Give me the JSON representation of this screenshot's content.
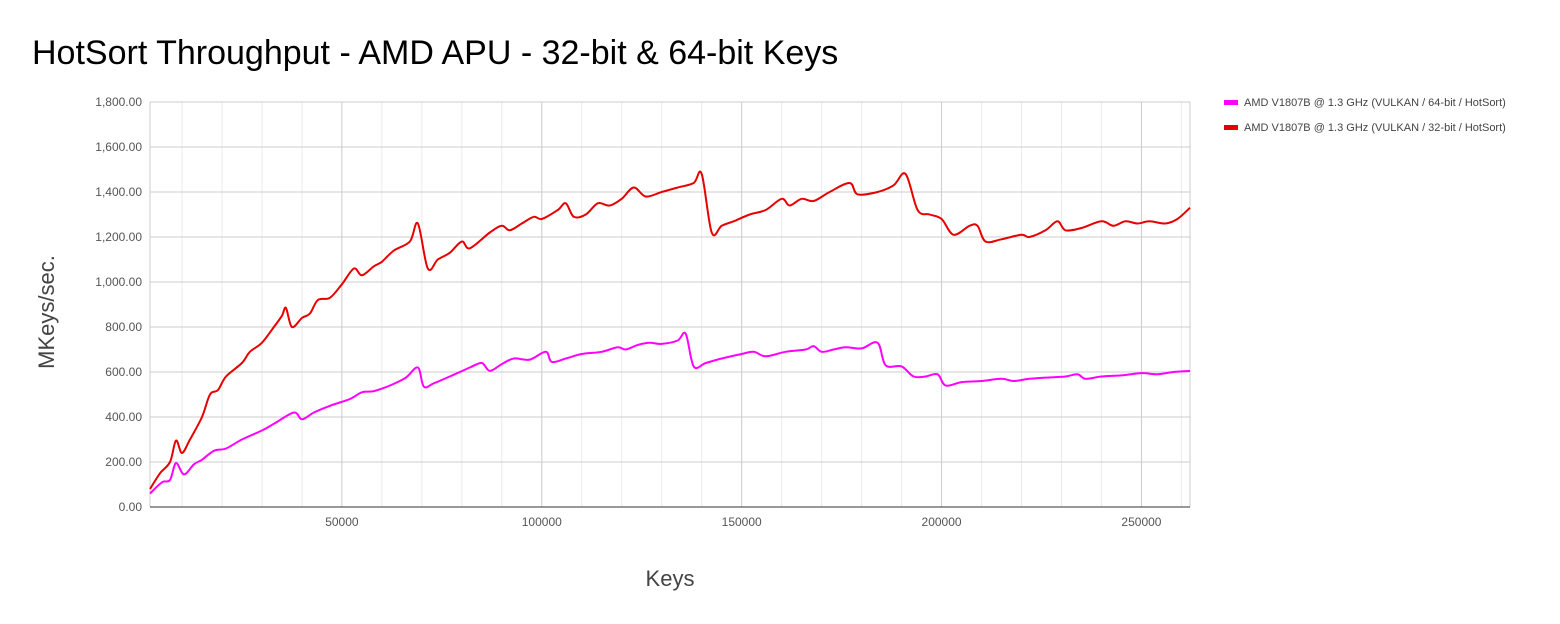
{
  "colors": {
    "series64": "#ff00ff",
    "series32": "#e60000",
    "grid_major": "#cccccc",
    "grid_minor": "#ebebeb",
    "axis": "#333333"
  },
  "chart_data": {
    "type": "line",
    "title": "HotSort Throughput - AMD APU - 32-bit & 64-bit Keys",
    "xlabel": "Keys",
    "ylabel": "MKeys/sec.",
    "xlim": [
      2000,
      262144
    ],
    "ylim": [
      0,
      1800
    ],
    "x_ticks": [
      50000,
      100000,
      150000,
      200000,
      250000
    ],
    "x_tick_labels": [
      "50000",
      "100000",
      "150000",
      "200000",
      "250000"
    ],
    "y_ticks": [
      0,
      200,
      400,
      600,
      800,
      1000,
      1200,
      1400,
      1600,
      1800
    ],
    "y_tick_labels": [
      "0.00",
      "200.00",
      "400.00",
      "600.00",
      "800.00",
      "1,000.00",
      "1,200.00",
      "1,400.00",
      "1,600.00",
      "1,800.00"
    ],
    "grid": true,
    "legend_position": "top-right",
    "series": [
      {
        "name": "AMD V1807B @ 1.3 GHz (VULKAN / 64-bit / HotSort)",
        "color": "#ff00ff",
        "points": [
          [
            2000,
            60
          ],
          [
            5000,
            110
          ],
          [
            7000,
            120
          ],
          [
            8500,
            195
          ],
          [
            10500,
            145
          ],
          [
            13000,
            190
          ],
          [
            15000,
            210
          ],
          [
            18000,
            250
          ],
          [
            21000,
            260
          ],
          [
            25000,
            300
          ],
          [
            30000,
            340
          ],
          [
            33000,
            370
          ],
          [
            38000,
            420
          ],
          [
            40000,
            390
          ],
          [
            43000,
            420
          ],
          [
            47000,
            450
          ],
          [
            52000,
            480
          ],
          [
            55000,
            510
          ],
          [
            58000,
            515
          ],
          [
            62000,
            540
          ],
          [
            66000,
            575
          ],
          [
            69000,
            620
          ],
          [
            70500,
            535
          ],
          [
            73000,
            550
          ],
          [
            77000,
            580
          ],
          [
            82000,
            620
          ],
          [
            85000,
            640
          ],
          [
            87000,
            605
          ],
          [
            90000,
            635
          ],
          [
            93000,
            660
          ],
          [
            97000,
            655
          ],
          [
            101000,
            690
          ],
          [
            102500,
            645
          ],
          [
            106000,
            660
          ],
          [
            110000,
            680
          ],
          [
            115000,
            690
          ],
          [
            119000,
            710
          ],
          [
            121000,
            700
          ],
          [
            124000,
            720
          ],
          [
            127000,
            730
          ],
          [
            130000,
            725
          ],
          [
            134000,
            740
          ],
          [
            136000,
            770
          ],
          [
            138000,
            625
          ],
          [
            141000,
            640
          ],
          [
            145000,
            660
          ],
          [
            150000,
            680
          ],
          [
            153000,
            690
          ],
          [
            156000,
            670
          ],
          [
            161000,
            690
          ],
          [
            166000,
            700
          ],
          [
            168000,
            715
          ],
          [
            170000,
            690
          ],
          [
            173000,
            700
          ],
          [
            176000,
            710
          ],
          [
            180000,
            705
          ],
          [
            184000,
            730
          ],
          [
            186000,
            630
          ],
          [
            190000,
            625
          ],
          [
            193000,
            580
          ],
          [
            196000,
            580
          ],
          [
            199000,
            590
          ],
          [
            201000,
            540
          ],
          [
            205000,
            555
          ],
          [
            210000,
            560
          ],
          [
            215000,
            570
          ],
          [
            218000,
            560
          ],
          [
            222000,
            570
          ],
          [
            226000,
            575
          ],
          [
            231000,
            580
          ],
          [
            234000,
            590
          ],
          [
            236000,
            570
          ],
          [
            240000,
            580
          ],
          [
            245000,
            585
          ],
          [
            250000,
            595
          ],
          [
            254000,
            590
          ],
          [
            258000,
            600
          ],
          [
            262144,
            605
          ]
        ]
      },
      {
        "name": "AMD V1807B @ 1.3 GHz (VULKAN / 32-bit / HotSort)",
        "color": "#e60000",
        "points": [
          [
            2000,
            80
          ],
          [
            4500,
            150
          ],
          [
            7000,
            200
          ],
          [
            8500,
            295
          ],
          [
            10000,
            240
          ],
          [
            12000,
            300
          ],
          [
            15000,
            400
          ],
          [
            17000,
            500
          ],
          [
            19000,
            520
          ],
          [
            21000,
            580
          ],
          [
            25000,
            640
          ],
          [
            27000,
            690
          ],
          [
            30000,
            730
          ],
          [
            33000,
            800
          ],
          [
            35000,
            850
          ],
          [
            36000,
            885
          ],
          [
            37500,
            800
          ],
          [
            40000,
            840
          ],
          [
            42000,
            860
          ],
          [
            44000,
            920
          ],
          [
            47000,
            930
          ],
          [
            50000,
            990
          ],
          [
            53000,
            1060
          ],
          [
            55000,
            1030
          ],
          [
            58000,
            1070
          ],
          [
            60000,
            1090
          ],
          [
            63000,
            1140
          ],
          [
            67000,
            1180
          ],
          [
            69000,
            1260
          ],
          [
            71500,
            1060
          ],
          [
            74000,
            1100
          ],
          [
            77000,
            1130
          ],
          [
            80000,
            1180
          ],
          [
            82000,
            1150
          ],
          [
            87000,
            1220
          ],
          [
            90000,
            1250
          ],
          [
            92000,
            1230
          ],
          [
            95000,
            1260
          ],
          [
            98000,
            1290
          ],
          [
            100000,
            1280
          ],
          [
            104000,
            1320
          ],
          [
            106000,
            1350
          ],
          [
            108000,
            1290
          ],
          [
            111000,
            1300
          ],
          [
            114000,
            1350
          ],
          [
            117000,
            1340
          ],
          [
            120000,
            1370
          ],
          [
            123000,
            1420
          ],
          [
            126000,
            1380
          ],
          [
            130000,
            1400
          ],
          [
            134000,
            1420
          ],
          [
            138000,
            1440
          ],
          [
            140000,
            1480
          ],
          [
            142500,
            1220
          ],
          [
            145000,
            1250
          ],
          [
            148000,
            1270
          ],
          [
            152000,
            1300
          ],
          [
            156000,
            1320
          ],
          [
            160000,
            1370
          ],
          [
            162000,
            1340
          ],
          [
            165000,
            1370
          ],
          [
            168000,
            1360
          ],
          [
            172000,
            1400
          ],
          [
            177000,
            1440
          ],
          [
            179000,
            1390
          ],
          [
            184000,
            1400
          ],
          [
            188000,
            1430
          ],
          [
            191000,
            1480
          ],
          [
            194000,
            1320
          ],
          [
            197000,
            1300
          ],
          [
            200000,
            1280
          ],
          [
            203000,
            1210
          ],
          [
            207000,
            1250
          ],
          [
            209000,
            1250
          ],
          [
            211000,
            1180
          ],
          [
            215000,
            1190
          ],
          [
            220000,
            1210
          ],
          [
            222000,
            1200
          ],
          [
            226000,
            1230
          ],
          [
            229000,
            1270
          ],
          [
            231000,
            1230
          ],
          [
            235000,
            1240
          ],
          [
            240000,
            1270
          ],
          [
            243000,
            1250
          ],
          [
            246000,
            1270
          ],
          [
            249000,
            1260
          ],
          [
            252000,
            1270
          ],
          [
            256000,
            1260
          ],
          [
            259000,
            1280
          ],
          [
            262144,
            1330
          ]
        ]
      }
    ]
  }
}
